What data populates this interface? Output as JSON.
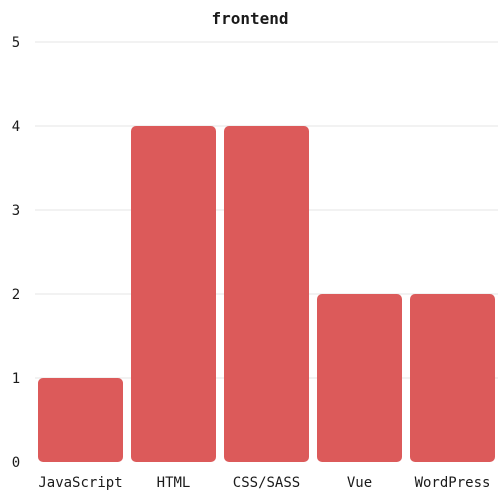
{
  "chart_data": {
    "type": "bar",
    "title": "frontend",
    "categories": [
      "JavaScript",
      "HTML",
      "CSS/SASS",
      "Vue",
      "WordPress"
    ],
    "values": [
      1,
      4,
      4,
      2,
      2
    ],
    "ylim": [
      0,
      5
    ],
    "yticks": [
      0,
      1,
      2,
      3,
      4,
      5
    ],
    "xlabel": "",
    "ylabel": "",
    "grid": true,
    "legend": "none",
    "bar_color": "#dc5a5a"
  }
}
